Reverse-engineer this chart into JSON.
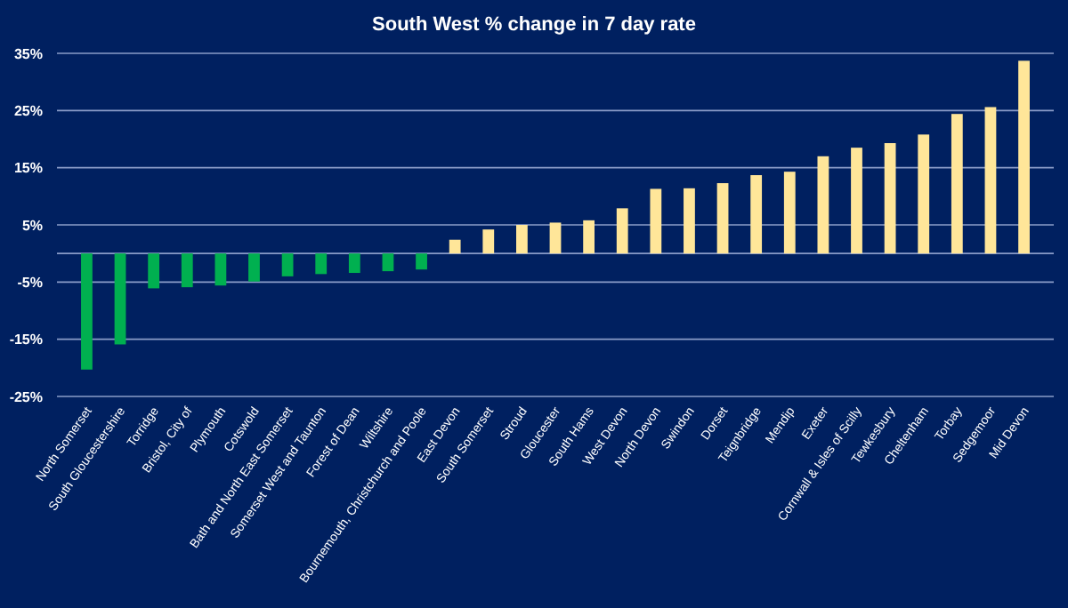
{
  "chart_data": {
    "type": "bar",
    "title": "South West % change in 7 day rate",
    "categories": [
      "North Somerset",
      "South Gloucestershire",
      "Torridge",
      "Bristol, City of",
      "Plymouth",
      "Cotswold",
      "Bath and North East Somerset",
      "Somerset West and Taunton",
      "Forest of Dean",
      "Wiltshire",
      "Bournemouth, Christchurch and Poole",
      "East Devon",
      "South Somerset",
      "Stroud",
      "Gloucester",
      "South Hams",
      "West Devon",
      "North Devon",
      "Swindon",
      "Dorset",
      "Teignbridge",
      "Mendip",
      "Exeter",
      "Cornwall & Isles of Scilly",
      "Tewkesbury",
      "Cheltenham",
      "Torbay",
      "Sedgemoor",
      "Mid Devon"
    ],
    "values": [
      -20.3,
      -15.9,
      -6.1,
      -5.9,
      -5.6,
      -4.9,
      -4.0,
      -3.6,
      -3.4,
      -3.1,
      -2.8,
      2.4,
      4.2,
      5.0,
      5.4,
      5.8,
      7.9,
      11.3,
      11.4,
      12.3,
      13.7,
      14.3,
      17.0,
      18.5,
      19.3,
      20.8,
      24.4,
      25.6,
      33.7
    ],
    "colors": [
      "#00b050",
      "#00b050",
      "#00b050",
      "#00b050",
      "#00b050",
      "#00b050",
      "#00b050",
      "#00b050",
      "#00b050",
      "#00b050",
      "#00b050",
      "#ffe699",
      "#ffe699",
      "#ffe699",
      "#ffe699",
      "#ffe699",
      "#ffe699",
      "#ffe699",
      "#ffe699",
      "#ffe699",
      "#ffe699",
      "#ffe699",
      "#ffe699",
      "#ffe699",
      "#ffe699",
      "#ffe699",
      "#ffe699",
      "#ffe699",
      "#ffe699"
    ],
    "ylim": [
      -25,
      35
    ],
    "yticks": [
      {
        "value": -25,
        "label": "-25%"
      },
      {
        "value": -15,
        "label": "-15%"
      },
      {
        "value": -5,
        "label": "-5%"
      },
      {
        "value": 5,
        "label": "5%"
      },
      {
        "value": 15,
        "label": "15%"
      },
      {
        "value": 25,
        "label": "25%"
      },
      {
        "value": 35,
        "label": "35%"
      }
    ],
    "grid": "y"
  }
}
